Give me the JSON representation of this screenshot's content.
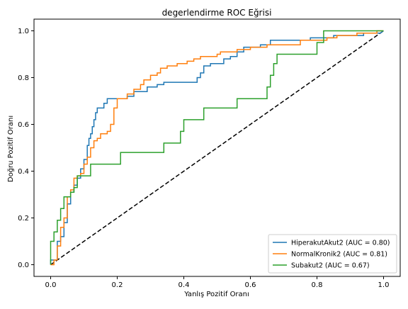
{
  "colors": {
    "background": "#ffffff",
    "axes": "#000000",
    "series": [
      "#1f77b4",
      "#ff7f0e",
      "#2ca02c"
    ],
    "reference_line": "#000000"
  },
  "chart_data": {
    "type": "line",
    "title": "degerlendirme ROC Eğrisi",
    "xlabel": "Yanlış Pozitif Oranı",
    "ylabel": "Doğru Pozitif Oranı",
    "xlim": [
      -0.05,
      1.05
    ],
    "ylim": [
      -0.05,
      1.05
    ],
    "xticks": [
      0.0,
      0.2,
      0.4,
      0.6,
      0.8,
      1.0
    ],
    "yticks": [
      0.0,
      0.2,
      0.4,
      0.6,
      0.8,
      1.0
    ],
    "xtick_labels": [
      "0.0",
      "0.2",
      "0.4",
      "0.6",
      "0.8",
      "1.0"
    ],
    "ytick_labels": [
      "0.0",
      "0.2",
      "0.4",
      "0.6",
      "0.8",
      "1.0"
    ],
    "grid": false,
    "legend_position": "lower-right",
    "reference_line": {
      "x": [
        0,
        1
      ],
      "y": [
        0,
        1
      ],
      "style": "dashed"
    },
    "series": [
      {
        "name": "HiperakutAkut2 (AUC = 0.80)",
        "points": [
          [
            0.0,
            0.0
          ],
          [
            0.0,
            0.02
          ],
          [
            0.02,
            0.02
          ],
          [
            0.02,
            0.1
          ],
          [
            0.03,
            0.1
          ],
          [
            0.03,
            0.12
          ],
          [
            0.04,
            0.12
          ],
          [
            0.04,
            0.18
          ],
          [
            0.05,
            0.18
          ],
          [
            0.05,
            0.26
          ],
          [
            0.06,
            0.26
          ],
          [
            0.06,
            0.31
          ],
          [
            0.07,
            0.31
          ],
          [
            0.07,
            0.34
          ],
          [
            0.08,
            0.34
          ],
          [
            0.08,
            0.37
          ],
          [
            0.09,
            0.37
          ],
          [
            0.09,
            0.41
          ],
          [
            0.1,
            0.41
          ],
          [
            0.1,
            0.45
          ],
          [
            0.11,
            0.45
          ],
          [
            0.11,
            0.51
          ],
          [
            0.115,
            0.51
          ],
          [
            0.115,
            0.54
          ],
          [
            0.12,
            0.54
          ],
          [
            0.12,
            0.56
          ],
          [
            0.125,
            0.56
          ],
          [
            0.125,
            0.59
          ],
          [
            0.13,
            0.59
          ],
          [
            0.13,
            0.62
          ],
          [
            0.135,
            0.62
          ],
          [
            0.135,
            0.65
          ],
          [
            0.14,
            0.65
          ],
          [
            0.14,
            0.67
          ],
          [
            0.16,
            0.67
          ],
          [
            0.16,
            0.69
          ],
          [
            0.17,
            0.69
          ],
          [
            0.17,
            0.71
          ],
          [
            0.23,
            0.71
          ],
          [
            0.23,
            0.72
          ],
          [
            0.25,
            0.72
          ],
          [
            0.25,
            0.74
          ],
          [
            0.29,
            0.74
          ],
          [
            0.29,
            0.76
          ],
          [
            0.32,
            0.76
          ],
          [
            0.32,
            0.77
          ],
          [
            0.34,
            0.77
          ],
          [
            0.34,
            0.78
          ],
          [
            0.44,
            0.78
          ],
          [
            0.44,
            0.8
          ],
          [
            0.45,
            0.8
          ],
          [
            0.45,
            0.82
          ],
          [
            0.46,
            0.82
          ],
          [
            0.46,
            0.85
          ],
          [
            0.48,
            0.85
          ],
          [
            0.48,
            0.86
          ],
          [
            0.52,
            0.86
          ],
          [
            0.52,
            0.88
          ],
          [
            0.54,
            0.88
          ],
          [
            0.54,
            0.89
          ],
          [
            0.56,
            0.89
          ],
          [
            0.56,
            0.91
          ],
          [
            0.58,
            0.91
          ],
          [
            0.58,
            0.93
          ],
          [
            0.63,
            0.93
          ],
          [
            0.63,
            0.94
          ],
          [
            0.66,
            0.94
          ],
          [
            0.66,
            0.96
          ],
          [
            0.78,
            0.96
          ],
          [
            0.78,
            0.97
          ],
          [
            0.85,
            0.97
          ],
          [
            0.85,
            0.98
          ],
          [
            0.94,
            0.98
          ],
          [
            0.94,
            0.99
          ],
          [
            0.99,
            0.99
          ],
          [
            1.0,
            1.0
          ]
        ]
      },
      {
        "name": "NormalKronik2 (AUC = 0.81)",
        "points": [
          [
            0.0,
            0.0
          ],
          [
            0.01,
            0.0
          ],
          [
            0.01,
            0.02
          ],
          [
            0.02,
            0.02
          ],
          [
            0.02,
            0.08
          ],
          [
            0.03,
            0.08
          ],
          [
            0.03,
            0.16
          ],
          [
            0.04,
            0.16
          ],
          [
            0.04,
            0.2
          ],
          [
            0.05,
            0.2
          ],
          [
            0.05,
            0.29
          ],
          [
            0.06,
            0.29
          ],
          [
            0.06,
            0.32
          ],
          [
            0.07,
            0.32
          ],
          [
            0.07,
            0.37
          ],
          [
            0.08,
            0.37
          ],
          [
            0.08,
            0.38
          ],
          [
            0.09,
            0.38
          ],
          [
            0.09,
            0.39
          ],
          [
            0.1,
            0.39
          ],
          [
            0.1,
            0.43
          ],
          [
            0.11,
            0.43
          ],
          [
            0.11,
            0.46
          ],
          [
            0.12,
            0.46
          ],
          [
            0.12,
            0.5
          ],
          [
            0.13,
            0.5
          ],
          [
            0.13,
            0.53
          ],
          [
            0.14,
            0.53
          ],
          [
            0.14,
            0.54
          ],
          [
            0.15,
            0.54
          ],
          [
            0.15,
            0.56
          ],
          [
            0.17,
            0.56
          ],
          [
            0.17,
            0.57
          ],
          [
            0.18,
            0.57
          ],
          [
            0.18,
            0.6
          ],
          [
            0.19,
            0.6
          ],
          [
            0.19,
            0.67
          ],
          [
            0.2,
            0.67
          ],
          [
            0.2,
            0.71
          ],
          [
            0.23,
            0.71
          ],
          [
            0.23,
            0.73
          ],
          [
            0.25,
            0.73
          ],
          [
            0.25,
            0.75
          ],
          [
            0.27,
            0.75
          ],
          [
            0.27,
            0.77
          ],
          [
            0.28,
            0.77
          ],
          [
            0.28,
            0.79
          ],
          [
            0.3,
            0.79
          ],
          [
            0.3,
            0.81
          ],
          [
            0.32,
            0.81
          ],
          [
            0.32,
            0.82
          ],
          [
            0.33,
            0.82
          ],
          [
            0.33,
            0.84
          ],
          [
            0.35,
            0.84
          ],
          [
            0.35,
            0.85
          ],
          [
            0.38,
            0.85
          ],
          [
            0.38,
            0.86
          ],
          [
            0.41,
            0.86
          ],
          [
            0.41,
            0.87
          ],
          [
            0.43,
            0.87
          ],
          [
            0.43,
            0.88
          ],
          [
            0.45,
            0.88
          ],
          [
            0.45,
            0.89
          ],
          [
            0.5,
            0.89
          ],
          [
            0.5,
            0.9
          ],
          [
            0.51,
            0.9
          ],
          [
            0.51,
            0.91
          ],
          [
            0.56,
            0.91
          ],
          [
            0.56,
            0.92
          ],
          [
            0.6,
            0.92
          ],
          [
            0.6,
            0.93
          ],
          [
            0.65,
            0.93
          ],
          [
            0.65,
            0.94
          ],
          [
            0.75,
            0.94
          ],
          [
            0.75,
            0.96
          ],
          [
            0.83,
            0.96
          ],
          [
            0.83,
            0.97
          ],
          [
            0.86,
            0.97
          ],
          [
            0.86,
            0.98
          ],
          [
            0.92,
            0.98
          ],
          [
            0.92,
            0.99
          ],
          [
            0.98,
            0.99
          ],
          [
            0.98,
            1.0
          ],
          [
            1.0,
            1.0
          ]
        ]
      },
      {
        "name": "Subakut2 (AUC = 0.67)",
        "points": [
          [
            0.0,
            0.0
          ],
          [
            0.0,
            0.1
          ],
          [
            0.01,
            0.1
          ],
          [
            0.01,
            0.14
          ],
          [
            0.02,
            0.14
          ],
          [
            0.02,
            0.19
          ],
          [
            0.03,
            0.19
          ],
          [
            0.03,
            0.24
          ],
          [
            0.04,
            0.24
          ],
          [
            0.04,
            0.29
          ],
          [
            0.06,
            0.29
          ],
          [
            0.06,
            0.31
          ],
          [
            0.07,
            0.31
          ],
          [
            0.07,
            0.33
          ],
          [
            0.08,
            0.33
          ],
          [
            0.08,
            0.38
          ],
          [
            0.12,
            0.38
          ],
          [
            0.12,
            0.43
          ],
          [
            0.21,
            0.43
          ],
          [
            0.21,
            0.48
          ],
          [
            0.34,
            0.48
          ],
          [
            0.34,
            0.52
          ],
          [
            0.39,
            0.52
          ],
          [
            0.39,
            0.57
          ],
          [
            0.4,
            0.57
          ],
          [
            0.4,
            0.62
          ],
          [
            0.46,
            0.62
          ],
          [
            0.46,
            0.67
          ],
          [
            0.56,
            0.67
          ],
          [
            0.56,
            0.71
          ],
          [
            0.65,
            0.71
          ],
          [
            0.65,
            0.76
          ],
          [
            0.66,
            0.76
          ],
          [
            0.66,
            0.81
          ],
          [
            0.67,
            0.81
          ],
          [
            0.67,
            0.86
          ],
          [
            0.68,
            0.86
          ],
          [
            0.68,
            0.9
          ],
          [
            0.69,
            0.9
          ],
          [
            0.69,
            0.9
          ],
          [
            0.8,
            0.9
          ],
          [
            0.8,
            0.95
          ],
          [
            0.82,
            0.95
          ],
          [
            0.82,
            1.0
          ],
          [
            1.0,
            1.0
          ]
        ]
      }
    ]
  }
}
